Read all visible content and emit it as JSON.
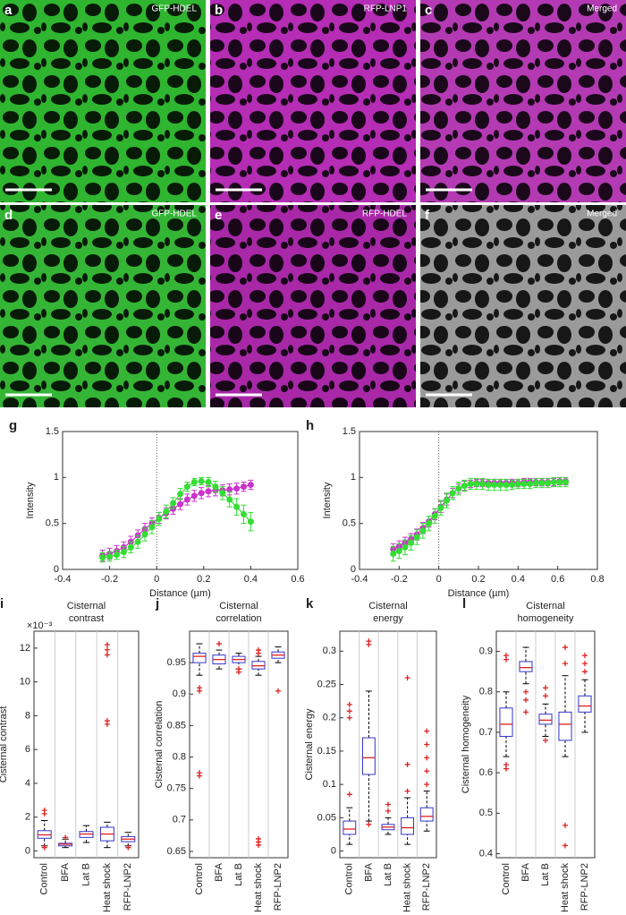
{
  "images": [
    {
      "letter": "a",
      "label": "GFP-HDEL",
      "color": "#2fb52f"
    },
    {
      "letter": "b",
      "label": "RFP-LNP1",
      "color": "#b52cb5"
    },
    {
      "letter": "c",
      "label": "Merged",
      "color": "#b43ab4"
    },
    {
      "letter": "d",
      "label": "GFP-HDEL",
      "color": "#35b535"
    },
    {
      "letter": "e",
      "label": "RFP-HDEL",
      "color": "#a828a8"
    },
    {
      "letter": "f",
      "label": "Merged",
      "color": "#9a9a9a"
    }
  ],
  "chart_data": [
    {
      "type": "line",
      "letter": "g",
      "x_label": "Distance (µm)",
      "y_label": "Intensity",
      "xlim": [
        -0.4,
        0.6
      ],
      "xticks": [
        -0.4,
        -0.2,
        0,
        0.2,
        0.4,
        0.6
      ],
      "ylim": [
        0,
        1.5
      ],
      "yticks": [
        0,
        0.5,
        1,
        1.5
      ],
      "vline": 0,
      "x": [
        -0.23,
        -0.2,
        -0.17,
        -0.14,
        -0.11,
        -0.08,
        -0.05,
        -0.02,
        0.01,
        0.04,
        0.07,
        0.1,
        0.13,
        0.16,
        0.19,
        0.22,
        0.25,
        0.28,
        0.31,
        0.34,
        0.37,
        0.4
      ],
      "series": [
        {
          "color": "#cc33cc",
          "values": [
            0.15,
            0.17,
            0.2,
            0.24,
            0.3,
            0.37,
            0.44,
            0.5,
            0.56,
            0.61,
            0.66,
            0.71,
            0.76,
            0.8,
            0.83,
            0.85,
            0.86,
            0.86,
            0.87,
            0.88,
            0.9,
            0.92
          ],
          "errors": [
            0.06,
            0.06,
            0.06,
            0.06,
            0.06,
            0.06,
            0.06,
            0.06,
            0.06,
            0.06,
            0.06,
            0.06,
            0.06,
            0.06,
            0.06,
            0.06,
            0.06,
            0.06,
            0.06,
            0.06,
            0.05,
            0.05
          ]
        },
        {
          "color": "#33dd33",
          "values": [
            0.13,
            0.14,
            0.16,
            0.19,
            0.24,
            0.3,
            0.38,
            0.46,
            0.55,
            0.63,
            0.72,
            0.82,
            0.9,
            0.95,
            0.96,
            0.95,
            0.9,
            0.83,
            0.76,
            0.68,
            0.6,
            0.52
          ],
          "errors": [
            0.05,
            0.05,
            0.05,
            0.06,
            0.06,
            0.07,
            0.07,
            0.07,
            0.07,
            0.07,
            0.06,
            0.06,
            0.05,
            0.04,
            0.04,
            0.05,
            0.06,
            0.07,
            0.08,
            0.09,
            0.1,
            0.1
          ]
        }
      ]
    },
    {
      "type": "line",
      "letter": "h",
      "x_label": "Distance (µm)",
      "y_label": "Intensity",
      "xlim": [
        -0.4,
        0.8
      ],
      "xticks": [
        -0.4,
        -0.2,
        0,
        0.2,
        0.4,
        0.6,
        0.8
      ],
      "ylim": [
        0,
        1.5
      ],
      "yticks": [
        0,
        0.5,
        1,
        1.5
      ],
      "vline": 0,
      "x": [
        -0.23,
        -0.2,
        -0.17,
        -0.14,
        -0.11,
        -0.08,
        -0.05,
        -0.02,
        0.01,
        0.04,
        0.07,
        0.1,
        0.13,
        0.16,
        0.19,
        0.22,
        0.25,
        0.28,
        0.31,
        0.34,
        0.37,
        0.4,
        0.43,
        0.46,
        0.49,
        0.52,
        0.55,
        0.58,
        0.61,
        0.64
      ],
      "series": [
        {
          "color": "#cc33cc",
          "values": [
            0.22,
            0.25,
            0.29,
            0.33,
            0.38,
            0.45,
            0.52,
            0.6,
            0.68,
            0.76,
            0.83,
            0.88,
            0.91,
            0.93,
            0.94,
            0.94,
            0.94,
            0.94,
            0.94,
            0.94,
            0.94,
            0.94,
            0.95,
            0.95,
            0.95,
            0.95,
            0.95,
            0.95,
            0.96,
            0.96
          ],
          "errors": [
            0.06,
            0.06,
            0.06,
            0.06,
            0.06,
            0.06,
            0.06,
            0.06,
            0.06,
            0.06,
            0.05,
            0.05,
            0.05,
            0.04,
            0.04,
            0.04,
            0.04,
            0.04,
            0.04,
            0.04,
            0.04,
            0.04,
            0.04,
            0.04,
            0.04,
            0.04,
            0.04,
            0.04,
            0.04,
            0.04
          ]
        },
        {
          "color": "#33dd33",
          "values": [
            0.17,
            0.2,
            0.24,
            0.29,
            0.35,
            0.42,
            0.5,
            0.58,
            0.67,
            0.75,
            0.83,
            0.88,
            0.91,
            0.93,
            0.93,
            0.93,
            0.92,
            0.92,
            0.92,
            0.92,
            0.92,
            0.93,
            0.93,
            0.93,
            0.94,
            0.94,
            0.94,
            0.95,
            0.95,
            0.95
          ],
          "errors": [
            0.08,
            0.08,
            0.08,
            0.08,
            0.08,
            0.08,
            0.08,
            0.08,
            0.08,
            0.08,
            0.07,
            0.07,
            0.06,
            0.06,
            0.06,
            0.06,
            0.06,
            0.06,
            0.06,
            0.06,
            0.05,
            0.05,
            0.05,
            0.05,
            0.05,
            0.05,
            0.05,
            0.05,
            0.05,
            0.05
          ]
        }
      ]
    },
    {
      "type": "box",
      "letter": "i",
      "title": [
        "Cisternal",
        "contrast"
      ],
      "y_label": "Cisternal contrast",
      "exponent_label": "×10⁻³",
      "ylim": [
        -0.4,
        13
      ],
      "yticks": [
        0,
        2,
        4,
        6,
        8,
        10,
        12
      ],
      "categories": [
        "Control",
        "BFA",
        "Lat B",
        "Heat shock",
        "RFP-LNP2"
      ],
      "boxes": [
        {
          "low": 0.3,
          "q1": 0.75,
          "median": 0.95,
          "q3": 1.2,
          "high": 1.8,
          "outliers": [
            0.2,
            2.2,
            2.4
          ]
        },
        {
          "low": 0.2,
          "q1": 0.3,
          "median": 0.4,
          "q3": 0.45,
          "high": 0.7,
          "outliers": [
            0.8
          ]
        },
        {
          "low": 0.5,
          "q1": 0.8,
          "median": 1.0,
          "q3": 1.15,
          "high": 1.5,
          "outliers": []
        },
        {
          "low": 0.2,
          "q1": 0.6,
          "median": 1.0,
          "q3": 1.4,
          "high": 1.7,
          "outliers": [
            7.5,
            7.7,
            11.6,
            11.9,
            12.2
          ]
        },
        {
          "low": 0.3,
          "q1": 0.55,
          "median": 0.7,
          "q3": 0.85,
          "high": 1.1,
          "outliers": [
            0.2
          ]
        }
      ]
    },
    {
      "type": "box",
      "letter": "j",
      "title": [
        "Cisternal",
        "correlation"
      ],
      "y_label": "Cisternal correlation",
      "ylim": [
        0.64,
        1.0
      ],
      "yticks": [
        0.65,
        0.7,
        0.75,
        0.8,
        0.85,
        0.9,
        0.95
      ],
      "categories": [
        "Control",
        "BFA",
        "Lat B",
        "Heat shock",
        "RFP-LNP2"
      ],
      "boxes": [
        {
          "low": 0.93,
          "q1": 0.95,
          "median": 0.96,
          "q3": 0.965,
          "high": 0.98,
          "outliers": [
            0.91,
            0.905,
            0.775,
            0.77
          ]
        },
        {
          "low": 0.94,
          "q1": 0.948,
          "median": 0.955,
          "q3": 0.962,
          "high": 0.97,
          "outliers": [
            0.98
          ]
        },
        {
          "low": 0.94,
          "q1": 0.95,
          "median": 0.955,
          "q3": 0.96,
          "high": 0.965,
          "outliers": [
            0.94,
            0.935
          ]
        },
        {
          "low": 0.93,
          "q1": 0.94,
          "median": 0.945,
          "q3": 0.952,
          "high": 0.96,
          "outliers": [
            0.97,
            0.965,
            0.67,
            0.665,
            0.66
          ]
        },
        {
          "low": 0.95,
          "q1": 0.957,
          "median": 0.962,
          "q3": 0.967,
          "high": 0.975,
          "outliers": [
            0.905
          ]
        }
      ]
    },
    {
      "type": "box",
      "letter": "k",
      "title": [
        "Cisternal",
        "energy"
      ],
      "y_label": "Cisternal energy",
      "ylim": [
        -0.01,
        0.33
      ],
      "yticks": [
        0,
        0.05,
        0.1,
        0.15,
        0.2,
        0.25,
        0.3
      ],
      "categories": [
        "Control",
        "BFA",
        "Lat B",
        "Heat shock",
        "RFP-LNP2"
      ],
      "boxes": [
        {
          "low": 0.01,
          "q1": 0.025,
          "median": 0.033,
          "q3": 0.045,
          "high": 0.065,
          "outliers": [
            0.085,
            0.2,
            0.21,
            0.22
          ]
        },
        {
          "low": 0.045,
          "q1": 0.115,
          "median": 0.14,
          "q3": 0.17,
          "high": 0.24,
          "outliers": [
            0.04,
            0.31,
            0.315
          ]
        },
        {
          "low": 0.025,
          "q1": 0.032,
          "median": 0.036,
          "q3": 0.04,
          "high": 0.05,
          "outliers": [
            0.06,
            0.07
          ]
        },
        {
          "low": 0.01,
          "q1": 0.025,
          "median": 0.035,
          "q3": 0.05,
          "high": 0.08,
          "outliers": [
            0.09,
            0.13,
            0.26
          ]
        },
        {
          "low": 0.03,
          "q1": 0.045,
          "median": 0.052,
          "q3": 0.065,
          "high": 0.09,
          "outliers": [
            0.1,
            0.12,
            0.14,
            0.16,
            0.18
          ]
        }
      ]
    },
    {
      "type": "box",
      "letter": "l",
      "title": [
        "Cisternal",
        "homogeneity"
      ],
      "y_label": "Cisternal homogeneity",
      "ylim": [
        0.39,
        0.95
      ],
      "yticks": [
        0.4,
        0.5,
        0.6,
        0.7,
        0.8,
        0.9
      ],
      "categories": [
        "Control",
        "BFA",
        "Lat B",
        "Heat shock",
        "RFP-LNP2"
      ],
      "boxes": [
        {
          "low": 0.64,
          "q1": 0.69,
          "median": 0.72,
          "q3": 0.76,
          "high": 0.8,
          "outliers": [
            0.62,
            0.61,
            0.88,
            0.89
          ]
        },
        {
          "low": 0.82,
          "q1": 0.85,
          "median": 0.86,
          "q3": 0.875,
          "high": 0.91,
          "outliers": [
            0.8,
            0.78,
            0.75
          ]
        },
        {
          "low": 0.69,
          "q1": 0.72,
          "median": 0.73,
          "q3": 0.745,
          "high": 0.77,
          "outliers": [
            0.79,
            0.81,
            0.68
          ]
        },
        {
          "low": 0.64,
          "q1": 0.68,
          "median": 0.72,
          "q3": 0.75,
          "high": 0.84,
          "outliers": [
            0.87,
            0.91,
            0.47,
            0.42
          ]
        },
        {
          "low": 0.7,
          "q1": 0.75,
          "median": 0.765,
          "q3": 0.79,
          "high": 0.83,
          "outliers": [
            0.85,
            0.87,
            0.89
          ]
        }
      ]
    }
  ]
}
